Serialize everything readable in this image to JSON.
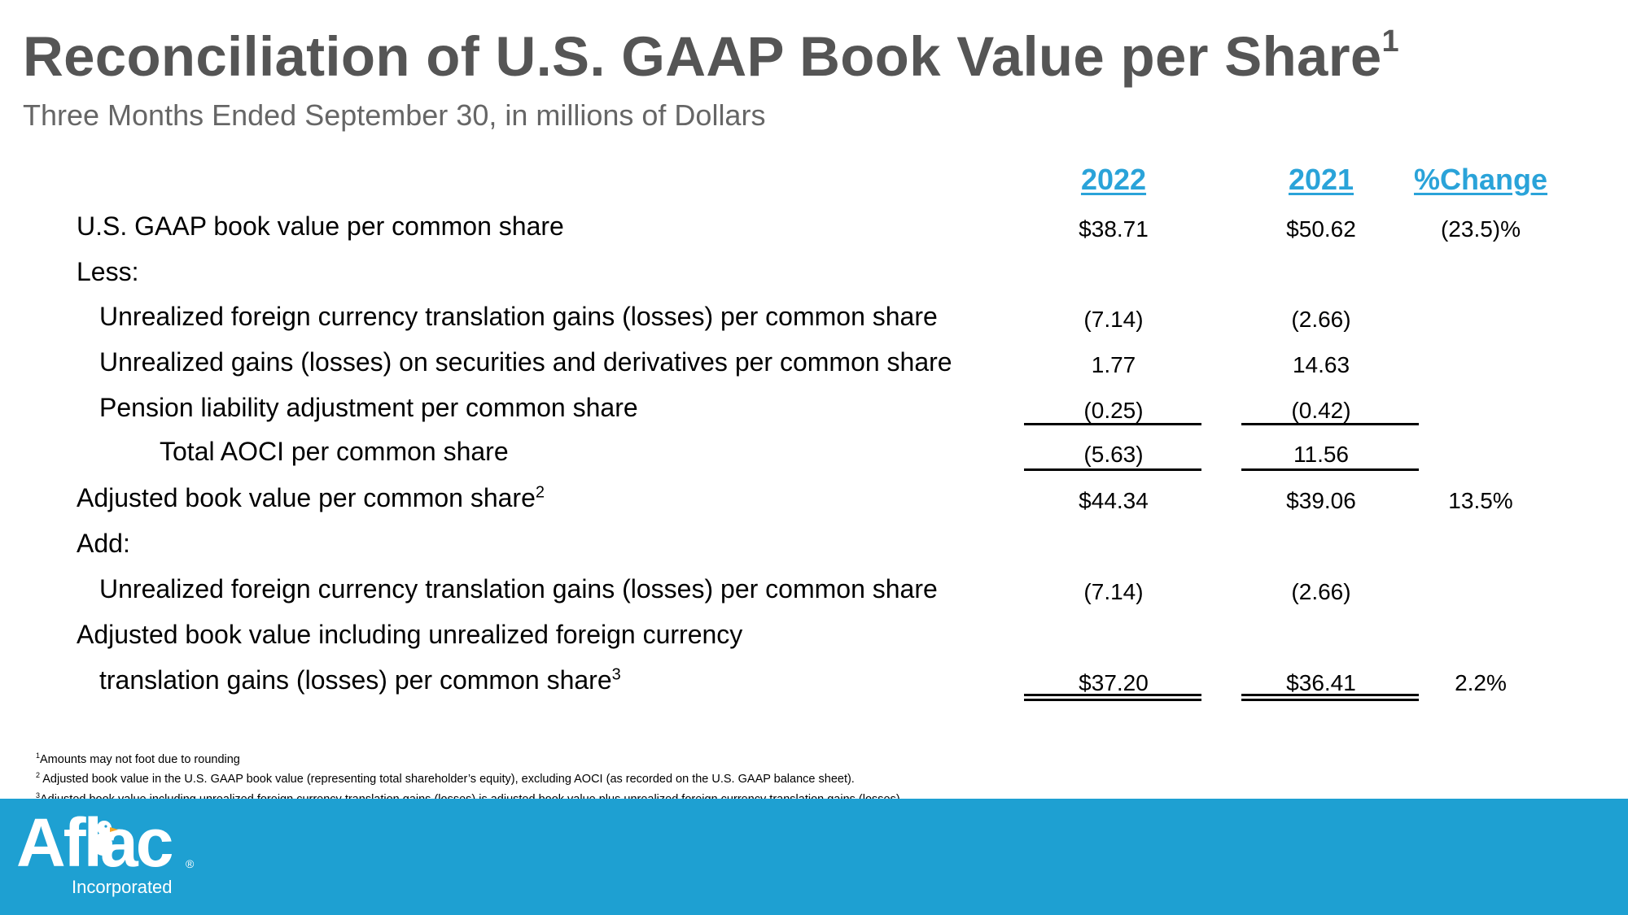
{
  "title": "Reconciliation of U.S. GAAP Book Value per Share",
  "title_footnote": "1",
  "subtitle": "Three Months Ended September 30, in millions of Dollars",
  "columns": [
    "2022",
    "2021",
    "%Change"
  ],
  "rows": [
    {
      "label": "U.S. GAAP book value per common share",
      "sup": "",
      "v2022": "$38.71",
      "v2021": "$50.62",
      "pct": "(23.5)%"
    },
    {
      "label": "Less:",
      "sup": "",
      "v2022": "",
      "v2021": "",
      "pct": ""
    },
    {
      "label": "Unrealized foreign currency translation gains (losses) per common share",
      "sup": "",
      "v2022": "(7.14)",
      "v2021": "(2.66)",
      "pct": ""
    },
    {
      "label": "Unrealized gains (losses) on securities and derivatives per common share",
      "sup": "",
      "v2022": "1.77",
      "v2021": "14.63",
      "pct": ""
    },
    {
      "label": "Pension liability adjustment per common share",
      "sup": "",
      "v2022": "(0.25)",
      "v2021": "(0.42)",
      "pct": ""
    },
    {
      "label": "Total AOCI per common share",
      "sup": "",
      "v2022": "(5.63)",
      "v2021": "11.56",
      "pct": ""
    },
    {
      "label": "Adjusted book value per common share",
      "sup": "2",
      "v2022": "$44.34",
      "v2021": "$39.06",
      "pct": "13.5%"
    },
    {
      "label": "Add:",
      "sup": "",
      "v2022": "",
      "v2021": "",
      "pct": ""
    },
    {
      "label": "Unrealized foreign currency translation gains (losses) per common share",
      "sup": "",
      "v2022": "(7.14)",
      "v2021": "(2.66)",
      "pct": ""
    },
    {
      "label": "Adjusted book value including unrealized foreign currency",
      "sup": "",
      "v2022": "",
      "v2021": "",
      "pct": ""
    },
    {
      "label": "translation gains (losses) per common share",
      "sup": "3",
      "v2022": "$37.20",
      "v2021": "$36.41",
      "pct": "2.2%"
    }
  ],
  "footnotes": [
    {
      "num": "1",
      "text": "Amounts may not foot due to rounding"
    },
    {
      "num": "2",
      "text": " Adjusted book value in the U.S. GAAP book value (representing total shareholder’s equity), excluding AOCI (as recorded on the U.S. GAAP balance sheet)."
    },
    {
      "num": "3",
      "text": "Adjusted book value including unrealized foreign currency translation gains (losses) is adjusted book value plus unrealized foreign currency translation gains (losses)."
    }
  ],
  "logo": {
    "wordmark": "Aflac",
    "registered": "®",
    "tagline": "Incorporated"
  },
  "colors": {
    "title": "#555555",
    "header_link": "#2aa3d9",
    "footer_band": "#1ea0d2"
  }
}
